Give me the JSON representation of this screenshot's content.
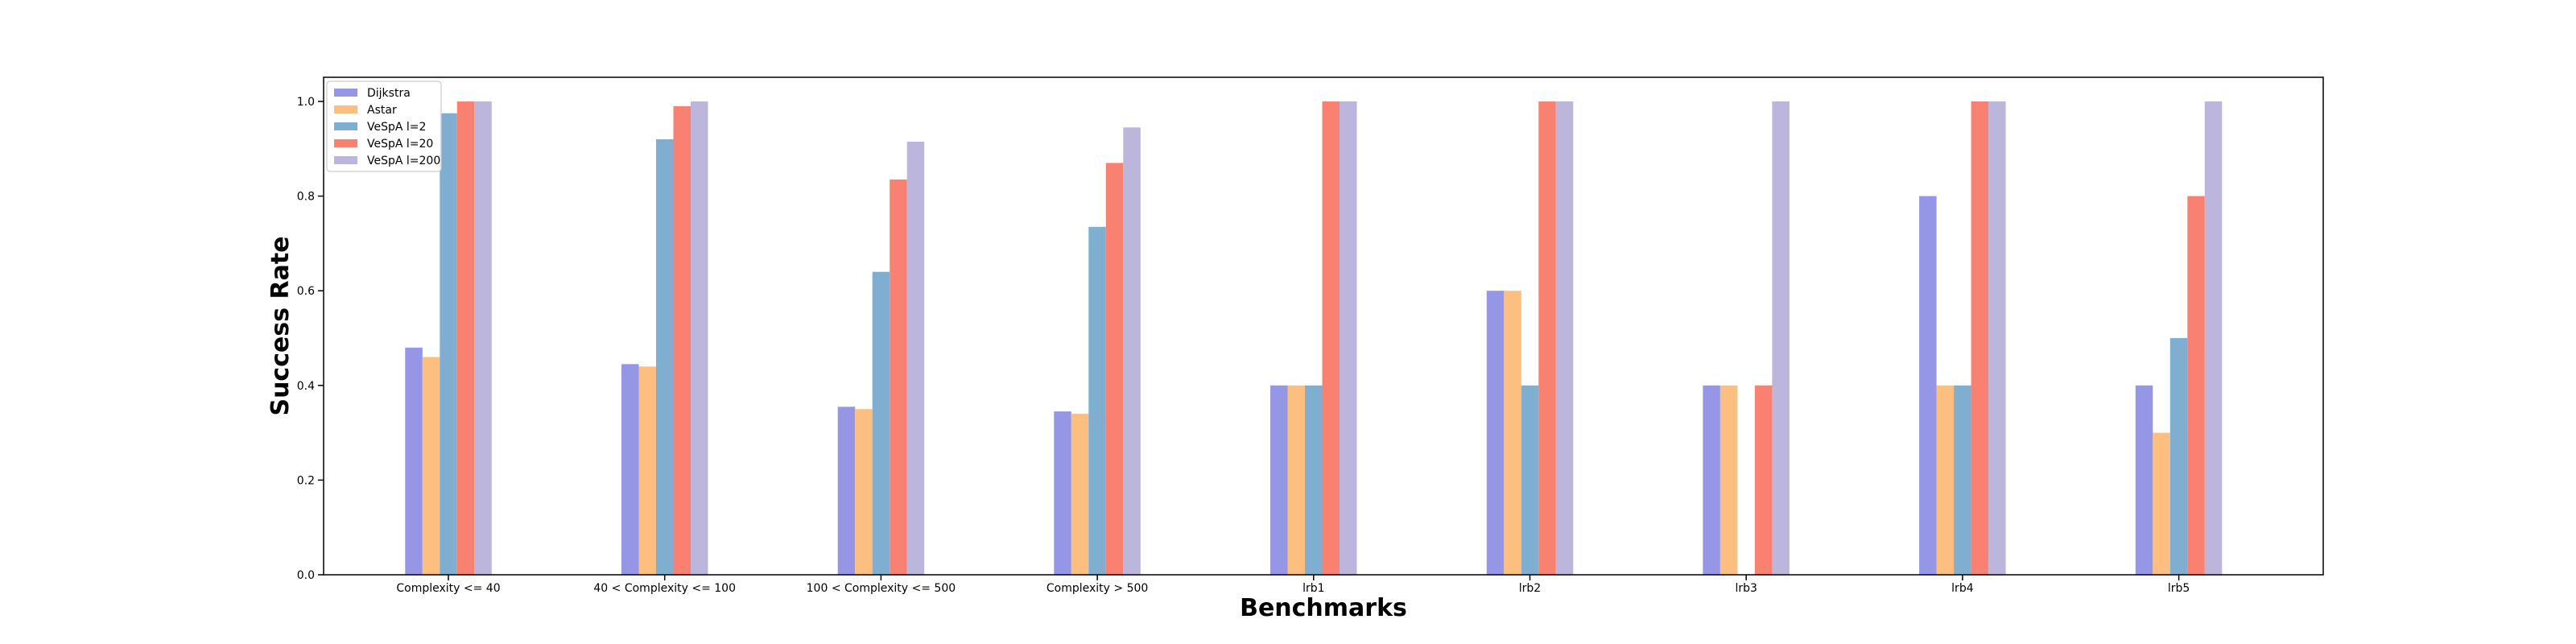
{
  "chart_data": {
    "type": "bar",
    "title": "",
    "xlabel": "Benchmarks",
    "ylabel": "Success Rate",
    "ylim": [
      0,
      1.0
    ],
    "yticks": [
      "0.0",
      "0.2",
      "0.4",
      "0.6",
      "0.8",
      "1.0"
    ],
    "grid": false,
    "legend_position": "top-left",
    "categories": [
      "Complexity <= 40",
      "40 < Complexity <= 100",
      "100 < Complexity <= 500",
      "Complexity > 500",
      "lrb1",
      "lrb2",
      "lrb3",
      "lrb4",
      "lrb5"
    ],
    "series": [
      {
        "name": "Dijkstra",
        "color": "#9696e6",
        "values": [
          0.48,
          0.445,
          0.355,
          0.345,
          0.4,
          0.6,
          0.4,
          0.8,
          0.4
        ]
      },
      {
        "name": "Astar",
        "color": "#fdbf7f",
        "values": [
          0.46,
          0.44,
          0.35,
          0.34,
          0.4,
          0.6,
          0.4,
          0.4,
          0.3
        ]
      },
      {
        "name": "VeSpA l=2",
        "color": "#80aed0",
        "values": [
          0.975,
          0.92,
          0.64,
          0.735,
          0.4,
          0.4,
          0.0,
          0.4,
          0.5
        ]
      },
      {
        "name": "VeSpA l=20",
        "color": "#f88172",
        "values": [
          1.0,
          0.99,
          0.835,
          0.87,
          1.0,
          1.0,
          0.4,
          1.0,
          0.8
        ]
      },
      {
        "name": "VeSpA l=200",
        "color": "#bdb6dc",
        "values": [
          1.0,
          1.0,
          0.915,
          0.945,
          1.0,
          1.0,
          1.0,
          1.0,
          1.0
        ]
      }
    ]
  }
}
